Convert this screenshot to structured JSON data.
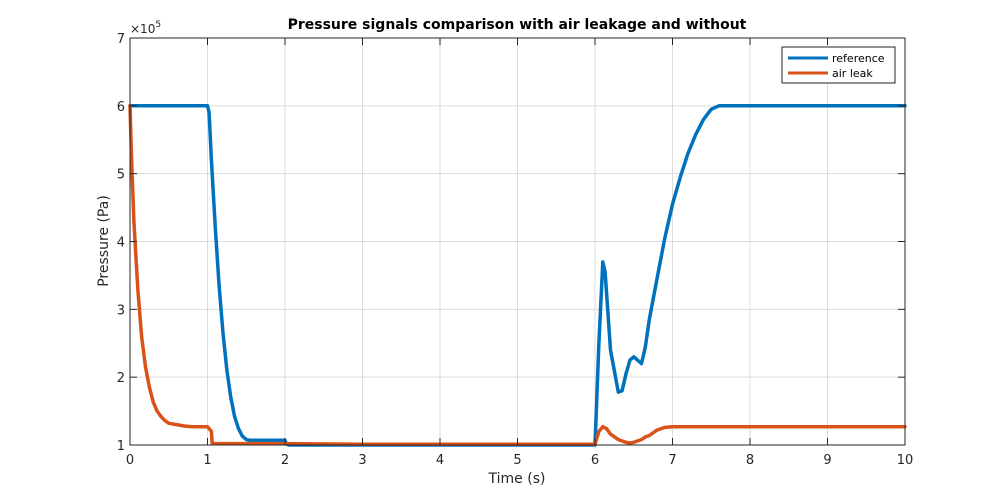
{
  "chart_data": {
    "type": "line",
    "title": "Pressure signals comparison with air leakage and without",
    "xlabel": "Time (s)",
    "ylabel": "Pressure (Pa)",
    "y_exponent_label": "×10",
    "y_exponent_power": "5",
    "xlim": [
      0,
      10
    ],
    "ylim": [
      1,
      7
    ],
    "x_ticks": [
      0,
      1,
      2,
      3,
      4,
      5,
      6,
      7,
      8,
      9,
      10
    ],
    "y_ticks": [
      1,
      2,
      3,
      4,
      5,
      6,
      7
    ],
    "grid": true,
    "legend_position": "top-right",
    "y_scale_note": "values in units of 1e5 Pa",
    "series": [
      {
        "name": "reference",
        "color": "#0072BD",
        "x": [
          0,
          1.0,
          1.02,
          1.05,
          1.1,
          1.15,
          1.2,
          1.25,
          1.3,
          1.35,
          1.4,
          1.45,
          1.5,
          1.55,
          1.6,
          1.7,
          1.8,
          1.9,
          2.0,
          2.02,
          2.05,
          3.0,
          4.0,
          5.0,
          5.9,
          6.0,
          6.05,
          6.1,
          6.13,
          6.2,
          6.3,
          6.35,
          6.4,
          6.45,
          6.5,
          6.55,
          6.6,
          6.65,
          6.7,
          6.8,
          6.9,
          7.0,
          7.1,
          7.2,
          7.3,
          7.4,
          7.5,
          7.6,
          7.7,
          7.75,
          8.0,
          9.0,
          10.0
        ],
        "y": [
          6.0,
          6.0,
          5.9,
          5.2,
          4.2,
          3.35,
          2.65,
          2.1,
          1.7,
          1.42,
          1.24,
          1.13,
          1.08,
          1.07,
          1.07,
          1.07,
          1.07,
          1.07,
          1.07,
          1.01,
          1.0,
          1.0,
          1.0,
          1.0,
          1.0,
          1.0,
          2.5,
          3.7,
          3.55,
          2.4,
          1.78,
          1.8,
          2.05,
          2.25,
          2.3,
          2.25,
          2.2,
          2.45,
          2.85,
          3.45,
          4.05,
          4.55,
          4.95,
          5.3,
          5.58,
          5.8,
          5.95,
          6.0,
          6.0,
          6.0,
          6.0,
          6.0,
          6.0
        ]
      },
      {
        "name": "air leak",
        "color": "#D95319",
        "x": [
          0,
          0.02,
          0.05,
          0.1,
          0.15,
          0.2,
          0.25,
          0.3,
          0.35,
          0.4,
          0.45,
          0.5,
          0.6,
          0.7,
          0.8,
          0.9,
          1.0,
          1.05,
          1.06,
          1.1,
          2.0,
          3.0,
          4.0,
          5.0,
          5.9,
          6.0,
          6.05,
          6.1,
          6.15,
          6.2,
          6.3,
          6.4,
          6.45,
          6.5,
          6.55,
          6.6,
          6.65,
          6.7,
          6.8,
          6.9,
          7.0,
          7.5,
          8.0,
          9.0,
          10.0
        ],
        "y": [
          6.0,
          5.2,
          4.3,
          3.3,
          2.6,
          2.15,
          1.85,
          1.63,
          1.5,
          1.42,
          1.36,
          1.32,
          1.3,
          1.28,
          1.27,
          1.27,
          1.27,
          1.2,
          1.02,
          1.02,
          1.02,
          1.01,
          1.01,
          1.01,
          1.01,
          1.01,
          1.2,
          1.27,
          1.24,
          1.16,
          1.08,
          1.04,
          1.03,
          1.04,
          1.06,
          1.08,
          1.12,
          1.14,
          1.22,
          1.26,
          1.27,
          1.27,
          1.27,
          1.27,
          1.27
        ]
      }
    ]
  }
}
